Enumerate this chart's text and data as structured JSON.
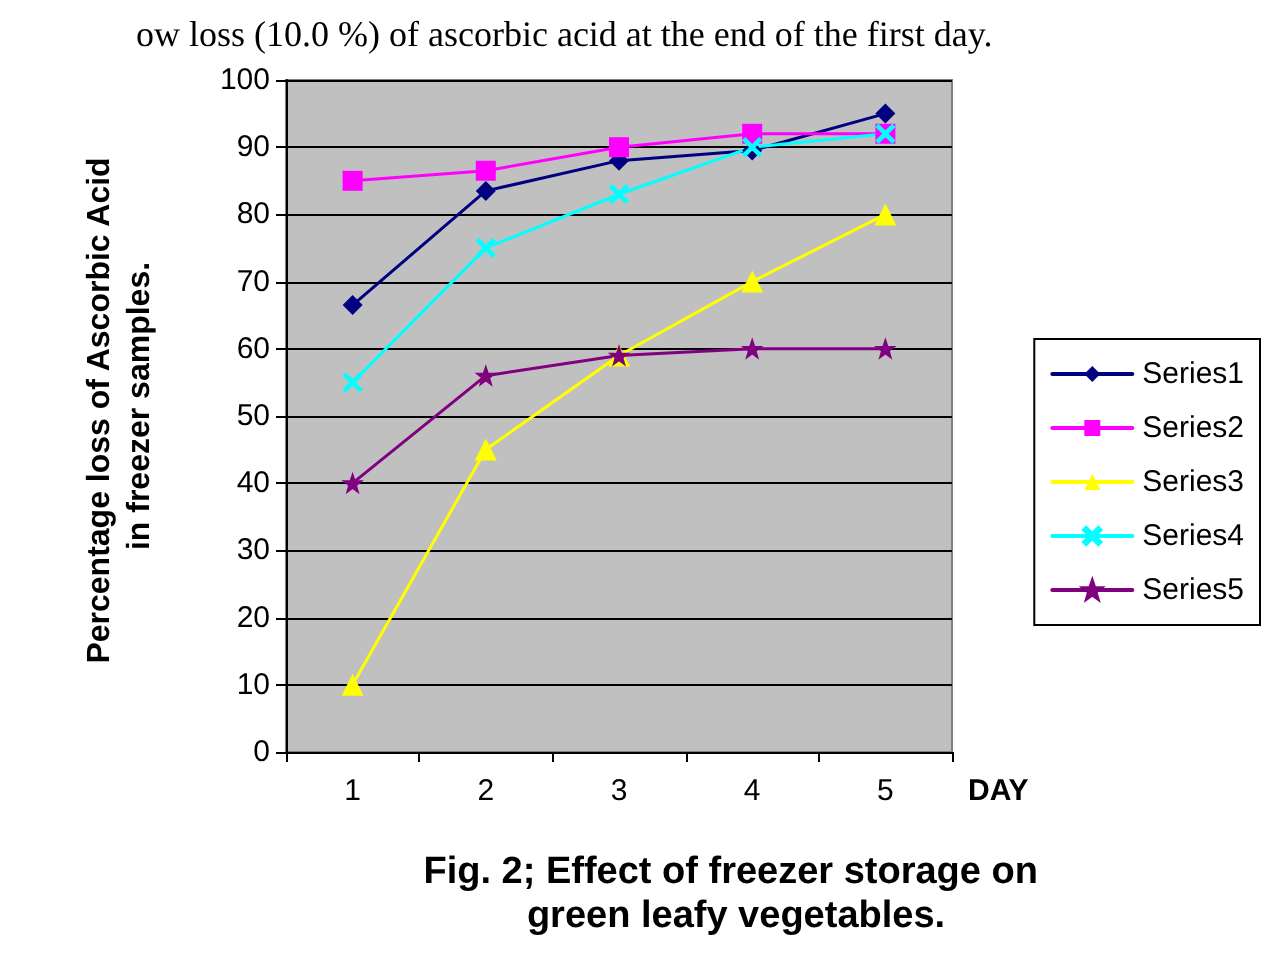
{
  "chart_data": {
    "type": "line",
    "title": "Fig. 2; Effect of freezer storage on green leafy vegetables.",
    "xlabel": "DAY",
    "ylabel": "Percentage loss of Ascorbic Acid in freezer samples.",
    "annotations": [
      "ow loss (10.0 %) of ascorbic acid at the end of the first day."
    ],
    "categories": [
      "1",
      "2",
      "3",
      "4",
      "5"
    ],
    "series": [
      {
        "name": "Series1",
        "color": "#000080",
        "marker": "diamond",
        "values": [
          66.5,
          83.5,
          88,
          89.5,
          95
        ]
      },
      {
        "name": "Series2",
        "color": "#ff00ff",
        "marker": "square",
        "values": [
          85,
          86.5,
          90,
          92,
          92
        ]
      },
      {
        "name": "Series3",
        "color": "#ffff00",
        "marker": "triangle",
        "values": [
          10,
          45,
          59,
          70,
          80
        ]
      },
      {
        "name": "Series4",
        "color": "#00ffff",
        "marker": "cross",
        "values": [
          55,
          75,
          83,
          90,
          92
        ]
      },
      {
        "name": "Series5",
        "color": "#800080",
        "marker": "star",
        "values": [
          40,
          56,
          59,
          60,
          60
        ]
      }
    ],
    "ylim": [
      0,
      100
    ],
    "yticks": [
      0,
      10,
      20,
      30,
      40,
      50,
      60,
      70,
      80,
      90,
      100
    ],
    "grid": "y",
    "legend": "right",
    "line_style": "solid"
  }
}
